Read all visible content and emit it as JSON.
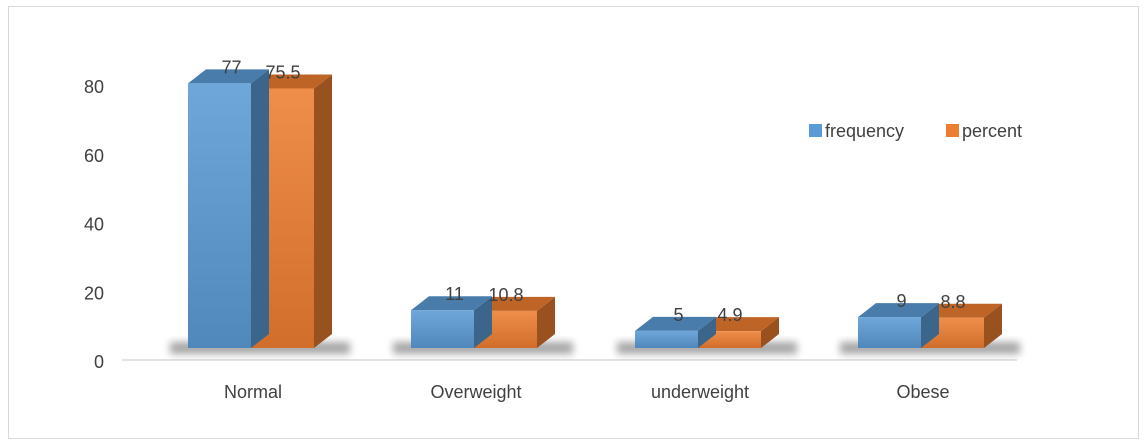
{
  "chart_data": {
    "type": "bar",
    "categories": [
      "Normal",
      "Overweight",
      "underweight",
      "Obese"
    ],
    "series": [
      {
        "name": "frequency",
        "values": [
          77,
          11,
          5,
          9
        ],
        "labels": [
          "77",
          "11",
          "5",
          "9"
        ],
        "color": "#5b9bd5"
      },
      {
        "name": "percent",
        "values": [
          75.5,
          10.8,
          4.9,
          8.8
        ],
        "labels": [
          "75.5",
          "10.8",
          "4.9",
          "8.8"
        ],
        "color": "#ed7d31"
      }
    ],
    "yticks": [
      "0",
      "20",
      "40",
      "60",
      "80"
    ],
    "ylim": [
      0,
      80
    ],
    "grid": false,
    "legend_position": "right",
    "style": "3d-column"
  }
}
